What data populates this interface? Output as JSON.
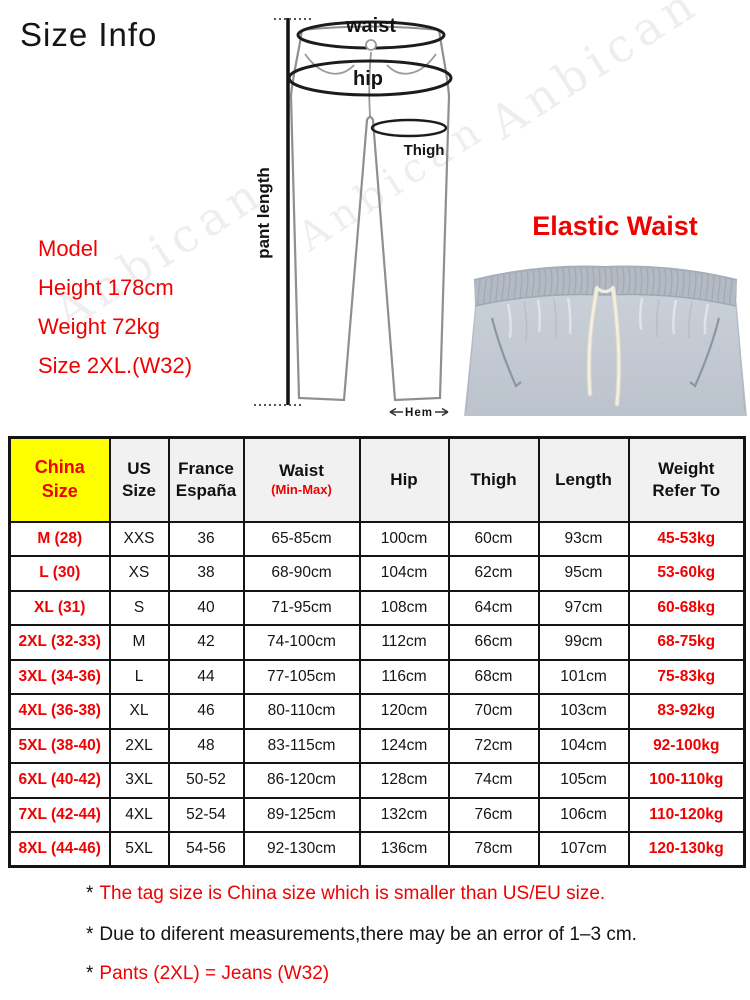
{
  "title": "Size Info",
  "watermark": "Anbican",
  "model_info": {
    "label": "Model",
    "height": "Height 178cm",
    "weight": "Weight 72kg",
    "size": "Size 2XL.(W32)"
  },
  "diagram": {
    "labels": {
      "waist": "waist",
      "hip": "hip",
      "thigh": "Thigh",
      "pant_length": "pant length",
      "hem": "Hem"
    }
  },
  "elastic_waist": "Elastic Waist",
  "size_table": {
    "headers": [
      {
        "line1": "China",
        "line2": "Size"
      },
      {
        "line1": "US",
        "line2": "Size"
      },
      {
        "line1": "France",
        "line2": "España"
      },
      {
        "line1": "Waist",
        "line2": "(Min-Max)"
      },
      {
        "line1": "Hip"
      },
      {
        "line1": "Thigh"
      },
      {
        "line1": "Length"
      },
      {
        "line1": "Weight",
        "line2": "Refer To"
      }
    ],
    "rows": [
      [
        "M (28)",
        "XXS",
        "36",
        "65-85cm",
        "100cm",
        "60cm",
        "93cm",
        "45-53kg"
      ],
      [
        "L (30)",
        "XS",
        "38",
        "68-90cm",
        "104cm",
        "62cm",
        "95cm",
        "53-60kg"
      ],
      [
        "XL (31)",
        "S",
        "40",
        "71-95cm",
        "108cm",
        "64cm",
        "97cm",
        "60-68kg"
      ],
      [
        "2XL (32-33)",
        "M",
        "42",
        "74-100cm",
        "112cm",
        "66cm",
        "99cm",
        "68-75kg"
      ],
      [
        "3XL (34-36)",
        "L",
        "44",
        "77-105cm",
        "116cm",
        "68cm",
        "101cm",
        "75-83kg"
      ],
      [
        "4XL (36-38)",
        "XL",
        "46",
        "80-110cm",
        "120cm",
        "70cm",
        "103cm",
        "83-92kg"
      ],
      [
        "5XL (38-40)",
        "2XL",
        "48",
        "83-115cm",
        "124cm",
        "72cm",
        "104cm",
        "92-100kg"
      ],
      [
        "6XL (40-42)",
        "3XL",
        "50-52",
        "86-120cm",
        "128cm",
        "74cm",
        "105cm",
        "100-110kg"
      ],
      [
        "7XL (42-44)",
        "4XL",
        "52-54",
        "89-125cm",
        "132cm",
        "76cm",
        "106cm",
        "110-120kg"
      ],
      [
        "8XL (44-46)",
        "5XL",
        "54-56",
        "92-130cm",
        "136cm",
        "78cm",
        "107cm",
        "120-130kg"
      ]
    ]
  },
  "notes": [
    {
      "marker": "*",
      "text": "The tag size is China size which is smaller than US/EU size."
    },
    {
      "marker": "*",
      "text": "Due to diferent measurements,there may be an error of 1–3 cm."
    },
    {
      "marker": "*",
      "text": "Pants (2XL) = Jeans (W32)"
    }
  ],
  "colors": {
    "accent_red": "#ee0202",
    "highlight_yellow": "#ffff00",
    "header_gray": "#f1f1f1",
    "table_border": "#141414",
    "sweatpants_gray": "#c3c9d2",
    "waistband_gray": "#b3bac4",
    "drawstring_cream": "#f1eee2"
  }
}
